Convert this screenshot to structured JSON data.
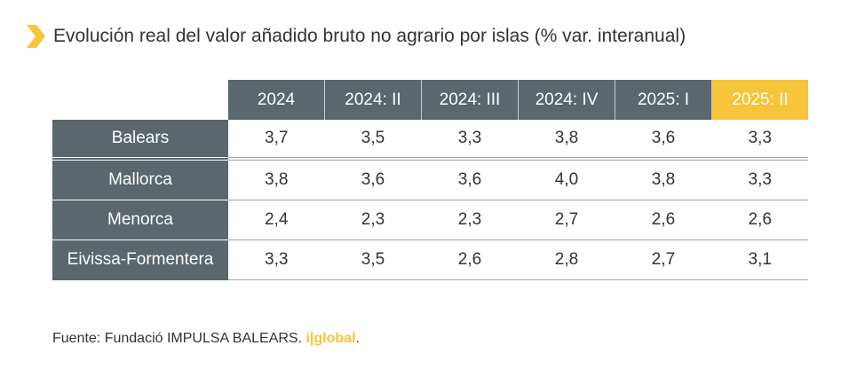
{
  "title": "Evolución real del valor añadido bruto no agrario por islas (% var. interanual)",
  "colors": {
    "accent": "#f7c43a",
    "header_bg": "#5b676c",
    "text": "#333333"
  },
  "table": {
    "columns": [
      "2024",
      "2024: II",
      "2024: III",
      "2024: IV",
      "2025: I",
      "2025: II"
    ],
    "highlighted_column": "2025: II",
    "rows": [
      {
        "label": "Balears",
        "values": [
          "3,7",
          "3,5",
          "3,3",
          "3,8",
          "3,6",
          "3,3"
        ]
      },
      {
        "label": "Mallorca",
        "values": [
          "3,8",
          "3,6",
          "3,6",
          "4,0",
          "3,8",
          "3,3"
        ]
      },
      {
        "label": "Menorca",
        "values": [
          "2,4",
          "2,3",
          "2,3",
          "2,7",
          "2,6",
          "2,6"
        ]
      },
      {
        "label": "Eivissa-Formentera",
        "values": [
          "3,3",
          "3,5",
          "2,6",
          "2,8",
          "2,7",
          "3,1"
        ]
      }
    ]
  },
  "footer": {
    "source_text": "Fuente: Fundació IMPULSA BALEARS.",
    "brand": "i|global",
    "trailing": "."
  }
}
